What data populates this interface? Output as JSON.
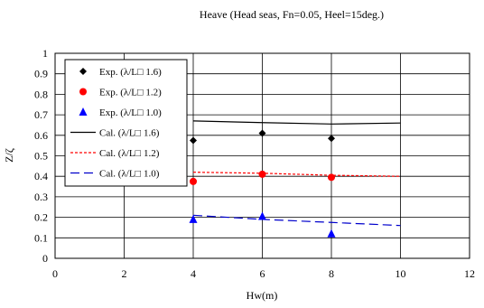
{
  "chart_data": {
    "type": "scatter",
    "title": "Heave (Head seas, Fn=0.05, Heel=15deg.)",
    "xlabel": "Hw(m)",
    "ylabel": "Z/ζ",
    "xlim": [
      0,
      12
    ],
    "ylim": [
      0,
      1
    ],
    "xticks": [
      "0",
      "2",
      "4",
      "6",
      "8",
      "10",
      "12"
    ],
    "yticks": [
      "0",
      "0.1",
      "0.2",
      "0.3",
      "0.4",
      "0.5",
      "0.6",
      "0.7",
      "0.8",
      "0.9",
      "1"
    ],
    "grid": true,
    "legend_position": "top-left",
    "series": [
      {
        "name": "Exp. (λ/L□ 1.6)",
        "kind": "marker",
        "marker": "diamond",
        "color": "#000000",
        "points": [
          [
            4,
            0.575
          ],
          [
            6,
            0.61
          ],
          [
            8,
            0.585
          ]
        ]
      },
      {
        "name": "Exp. (λ/L□ 1.2)",
        "kind": "marker",
        "marker": "circle",
        "color": "#ff0000",
        "points": [
          [
            4,
            0.375
          ],
          [
            6,
            0.41
          ],
          [
            8,
            0.395
          ]
        ]
      },
      {
        "name": "Exp. (λ/L□ 1.0)",
        "kind": "marker",
        "marker": "triangle",
        "color": "#0000ff",
        "points": [
          [
            4,
            0.19
          ],
          [
            6,
            0.205
          ],
          [
            8,
            0.12
          ]
        ]
      },
      {
        "name": "Cal. (λ/L□ 1.6)",
        "kind": "line",
        "dash": "solid",
        "color": "#000000",
        "points": [
          [
            4,
            0.67
          ],
          [
            6,
            0.662
          ],
          [
            8,
            0.655
          ],
          [
            10,
            0.66
          ]
        ]
      },
      {
        "name": "Cal. (λ/L□ 1.2)",
        "kind": "line",
        "dash": "dot",
        "color": "#ff0000",
        "points": [
          [
            4,
            0.42
          ],
          [
            6,
            0.415
          ],
          [
            8,
            0.405
          ],
          [
            10,
            0.4
          ]
        ]
      },
      {
        "name": "Cal. (λ/L□ 1.0)",
        "kind": "line",
        "dash": "dash",
        "color": "#0000cc",
        "points": [
          [
            4,
            0.21
          ],
          [
            6,
            0.19
          ],
          [
            8,
            0.175
          ],
          [
            10,
            0.16
          ]
        ]
      }
    ]
  }
}
